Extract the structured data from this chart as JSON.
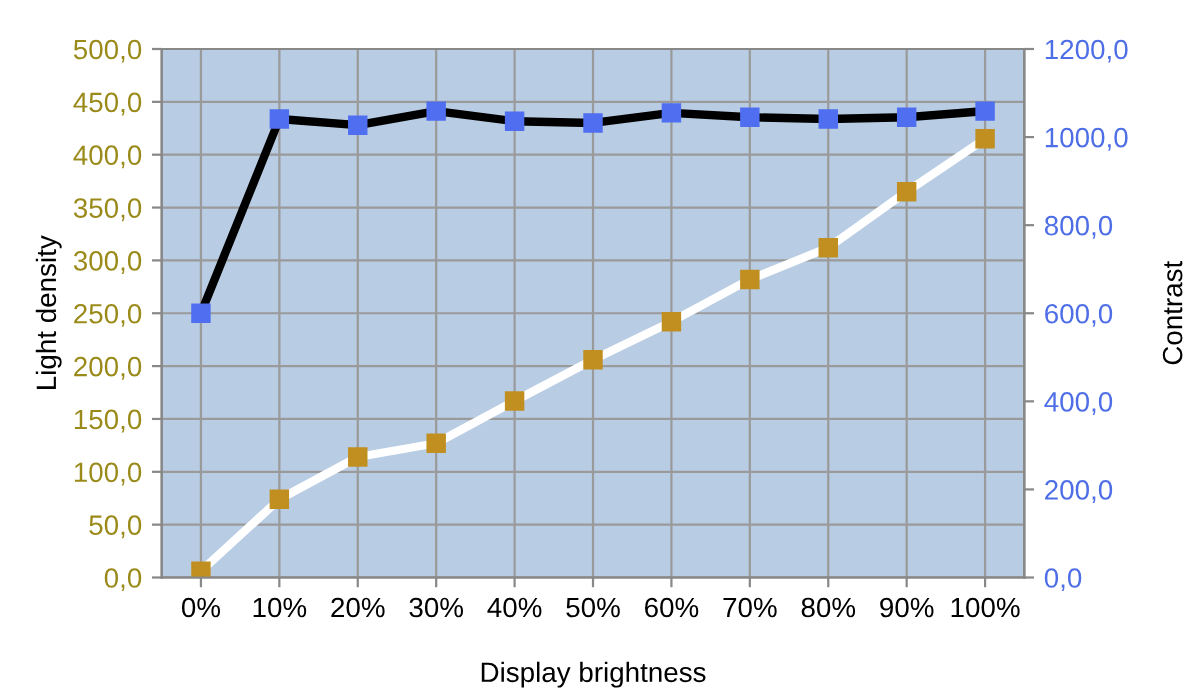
{
  "chart_data": {
    "type": "line",
    "xlabel": "Display brightness",
    "ylabel": "Light density",
    "y2label": "Contrast",
    "categories": [
      "0%",
      "10%",
      "20%",
      "30%",
      "40%",
      "50%",
      "60%",
      "70%",
      "80%",
      "90%",
      "100%"
    ],
    "series": [
      {
        "color": "#ffffff",
        "values": [
          6,
          74,
          114,
          127,
          167,
          206,
          242,
          282,
          312,
          365,
          415
        ]
      },
      {
        "color": "#000000",
        "axis": "y2",
        "values": [
          600,
          1041,
          1027,
          1059,
          1036,
          1032,
          1055,
          1045,
          1041,
          1045,
          1059
        ]
      }
    ],
    "ylim": [
      0,
      500
    ],
    "yticks": [
      {
        "value": 0,
        "label": "0,0"
      },
      {
        "value": 50,
        "label": "50,0"
      },
      {
        "value": 100,
        "label": "100,0"
      },
      {
        "value": 150,
        "label": "150,0"
      },
      {
        "value": 200,
        "label": "200,0"
      },
      {
        "value": 250,
        "label": "250,0"
      },
      {
        "value": 300,
        "label": "300,0"
      },
      {
        "value": 350,
        "label": "350,0"
      },
      {
        "value": 400,
        "label": "400,0"
      },
      {
        "value": 450,
        "label": "450,0"
      },
      {
        "value": 500,
        "label": "500,0"
      }
    ],
    "y2lim": [
      0,
      1200
    ],
    "y2ticks": [
      {
        "value": 0,
        "label": "0,0"
      },
      {
        "value": 200,
        "label": "200,0"
      },
      {
        "value": 400,
        "label": "400,0"
      },
      {
        "value": 600,
        "label": "600,0"
      },
      {
        "value": 800,
        "label": "800,0"
      },
      {
        "value": 1000,
        "label": "1000,0"
      },
      {
        "value": 1200,
        "label": "1200,0"
      }
    ],
    "grid": true,
    "marker": "square",
    "line_style": "solid"
  }
}
